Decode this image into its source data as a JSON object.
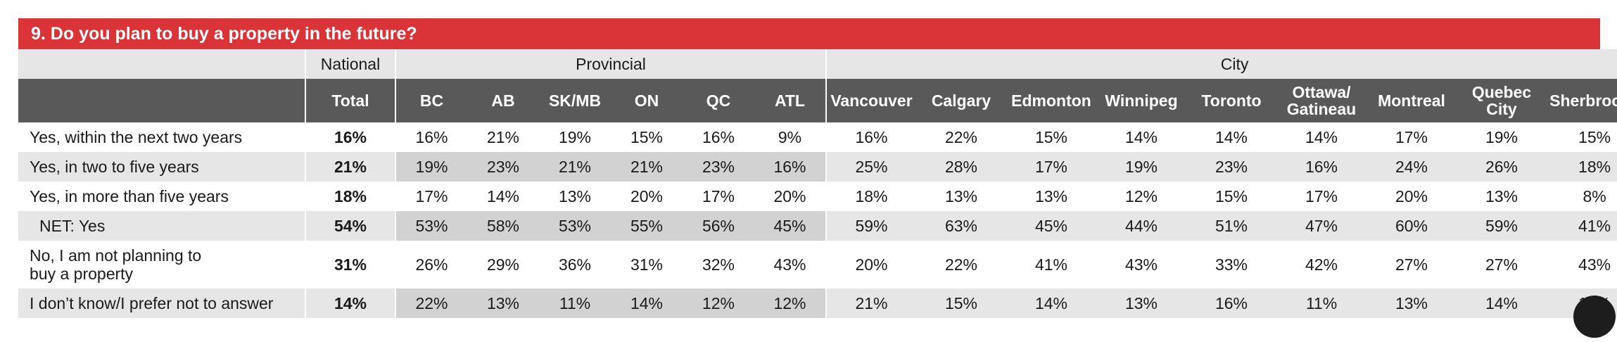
{
  "title": "9. Do you plan to buy a property in the future?",
  "groups": {
    "national": "National",
    "provincial": "Provincial",
    "city": "City"
  },
  "columns": [
    "Total",
    "BC",
    "AB",
    "SK/MB",
    "ON",
    "QC",
    "ATL",
    "Vancouver",
    "Calgary",
    "Edmonton",
    "Winnipeg",
    "Toronto",
    "Ottawa/ Gatineau",
    "Montreal",
    "Quebec City",
    "Sherbrooke"
  ],
  "rows": [
    {
      "label": "Yes, within the next two years",
      "values": [
        "16%",
        "16%",
        "21%",
        "19%",
        "15%",
        "16%",
        "9%",
        "16%",
        "22%",
        "15%",
        "14%",
        "14%",
        "14%",
        "17%",
        "19%",
        "15%"
      ]
    },
    {
      "label": "Yes, in two to five years",
      "values": [
        "21%",
        "19%",
        "23%",
        "21%",
        "21%",
        "23%",
        "16%",
        "25%",
        "28%",
        "17%",
        "19%",
        "23%",
        "16%",
        "24%",
        "26%",
        "18%"
      ]
    },
    {
      "label": "Yes, in more than five years",
      "values": [
        "18%",
        "17%",
        "14%",
        "13%",
        "20%",
        "17%",
        "20%",
        "18%",
        "13%",
        "13%",
        "12%",
        "15%",
        "17%",
        "20%",
        "13%",
        "8%"
      ]
    },
    {
      "label": "NET: Yes",
      "values": [
        "54%",
        "53%",
        "58%",
        "53%",
        "55%",
        "56%",
        "45%",
        "59%",
        "63%",
        "45%",
        "44%",
        "51%",
        "47%",
        "60%",
        "59%",
        "41%"
      ]
    },
    {
      "label": "No, I am not planning to buy a property",
      "values": [
        "31%",
        "26%",
        "29%",
        "36%",
        "31%",
        "32%",
        "43%",
        "20%",
        "22%",
        "41%",
        "43%",
        "33%",
        "42%",
        "27%",
        "27%",
        "43%"
      ]
    },
    {
      "label": "I don’t know/I prefer not to answer",
      "values": [
        "14%",
        "22%",
        "13%",
        "11%",
        "14%",
        "12%",
        "12%",
        "21%",
        "15%",
        "14%",
        "13%",
        "16%",
        "11%",
        "13%",
        "14%",
        "15%"
      ]
    }
  ]
}
